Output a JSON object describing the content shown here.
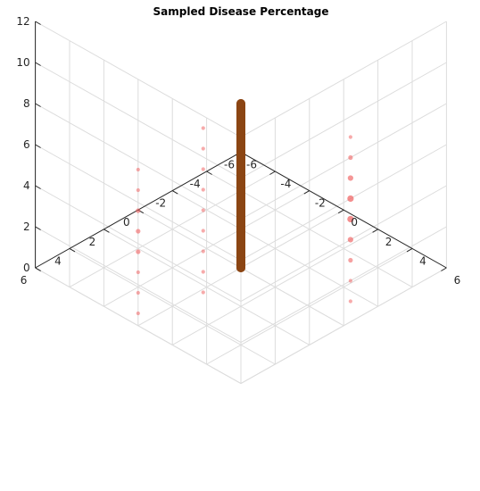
{
  "chart_data": {
    "type": "scatter3d",
    "title": "Sampled Disease Percentage",
    "xlim": [
      -6,
      6
    ],
    "ylim": [
      -6,
      6
    ],
    "zlim": [
      0,
      12
    ],
    "x_ticks": [
      "-6",
      "-4",
      "-2",
      "0",
      "2",
      "4",
      "6"
    ],
    "y_ticks": [
      "-6",
      "-4",
      "-2",
      "0",
      "2",
      "4",
      "6"
    ],
    "z_ticks": [
      "0",
      "2",
      "4",
      "6",
      "8",
      "10",
      "12"
    ],
    "grid": true,
    "colors": {
      "main": "#8B4513",
      "projection": "#f06060"
    },
    "series": [
      {
        "points": [
          {
            "x": 0,
            "y": 0,
            "z": 0,
            "size": 10
          },
          {
            "x": 0,
            "y": 0,
            "z": 8,
            "size": 10
          }
        ],
        "style": "thick-line"
      }
    ],
    "projections": [
      {
        "plane": "yz",
        "points": [
          {
            "y": 0,
            "z": 0.6,
            "size": 3
          },
          {
            "y": 0,
            "z": 1.6,
            "size": 3
          },
          {
            "y": 0,
            "z": 2.6,
            "size": 3
          },
          {
            "y": 0,
            "z": 3.6,
            "size": 4
          },
          {
            "y": 0,
            "z": 4.6,
            "size": 4
          },
          {
            "y": 0,
            "z": 5.6,
            "size": 4
          },
          {
            "y": 0,
            "z": 6.6,
            "size": 3
          },
          {
            "y": 0,
            "z": 7.6,
            "size": 3
          }
        ]
      },
      {
        "plane": "xz",
        "points": [
          {
            "x": 0,
            "z": 0.4,
            "size": 3
          },
          {
            "x": 0,
            "z": 1.4,
            "size": 3
          },
          {
            "x": 0,
            "z": 2.4,
            "size": 3
          },
          {
            "x": 0,
            "z": 3.4,
            "size": 3
          },
          {
            "x": 0,
            "z": 4.4,
            "size": 3
          },
          {
            "x": 0,
            "z": 5.4,
            "size": 3
          },
          {
            "x": 0,
            "z": 6.4,
            "size": 3
          },
          {
            "x": 0,
            "z": 7.4,
            "size": 3
          },
          {
            "x": 0,
            "z": 8.4,
            "size": 3
          }
        ]
      },
      {
        "plane": "xz-near",
        "points": [
          {
            "x": 0,
            "z": 1.0,
            "size": 3
          },
          {
            "x": 0,
            "z": 2.0,
            "size": 3
          },
          {
            "x": 0,
            "z": 3.0,
            "size": 4
          },
          {
            "x": 0,
            "z": 4.0,
            "size": 5
          },
          {
            "x": 0,
            "z": 5.0,
            "size": 6
          },
          {
            "x": 0,
            "z": 6.0,
            "size": 6
          },
          {
            "x": 0,
            "z": 7.0,
            "size": 5
          },
          {
            "x": 0,
            "z": 8.0,
            "size": 4
          },
          {
            "x": 0,
            "z": 9.0,
            "size": 3
          }
        ]
      }
    ]
  }
}
